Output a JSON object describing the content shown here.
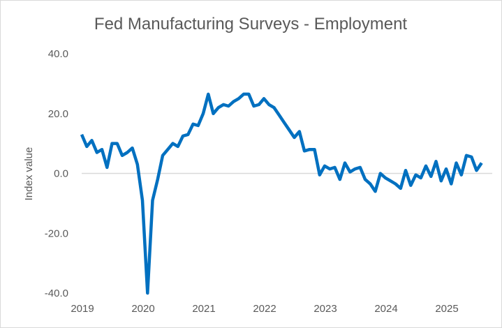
{
  "chart_data": {
    "type": "line",
    "title": "Fed Manufacturing Surveys - Employment",
    "xlabel": "",
    "ylabel": "Index value",
    "ylim": [
      -40,
      40
    ],
    "yticks": [
      "40.0",
      "20.0",
      "0.0",
      "-20.0",
      "-40.0"
    ],
    "ytick_values": [
      40,
      20,
      0,
      -20,
      -40
    ],
    "xticks": [
      "2019",
      "2020",
      "2021",
      "2022",
      "2023",
      "2024",
      "2025"
    ],
    "x_start": "2019-01",
    "x_frequency": "monthly",
    "grid": "zero line only",
    "color": "#0070c0",
    "series": [
      {
        "name": "Employment",
        "values": [
          13,
          9,
          11,
          7,
          8,
          2,
          10,
          10,
          6,
          7,
          8.5,
          3,
          -9,
          -40,
          -9,
          -2,
          6,
          8,
          10,
          9,
          12.5,
          13,
          16.5,
          16,
          20,
          26.5,
          20,
          22,
          23,
          22.5,
          24,
          25,
          26.5,
          26.5,
          22.5,
          23,
          25,
          23,
          22,
          19.5,
          17,
          14.5,
          12,
          14,
          7.5,
          8,
          8,
          -0.5,
          2.5,
          1.5,
          2,
          -2,
          3.5,
          0.5,
          1.5,
          2,
          -2,
          -3.5,
          -6,
          0,
          -1.5,
          -2.5,
          -3.5,
          -5,
          1,
          -4,
          -0.5,
          -1.5,
          2.5,
          -1,
          4,
          -2.5,
          1.5,
          -3.5,
          3.5,
          -0.5,
          6,
          5.5,
          1,
          3.5
        ]
      }
    ]
  }
}
